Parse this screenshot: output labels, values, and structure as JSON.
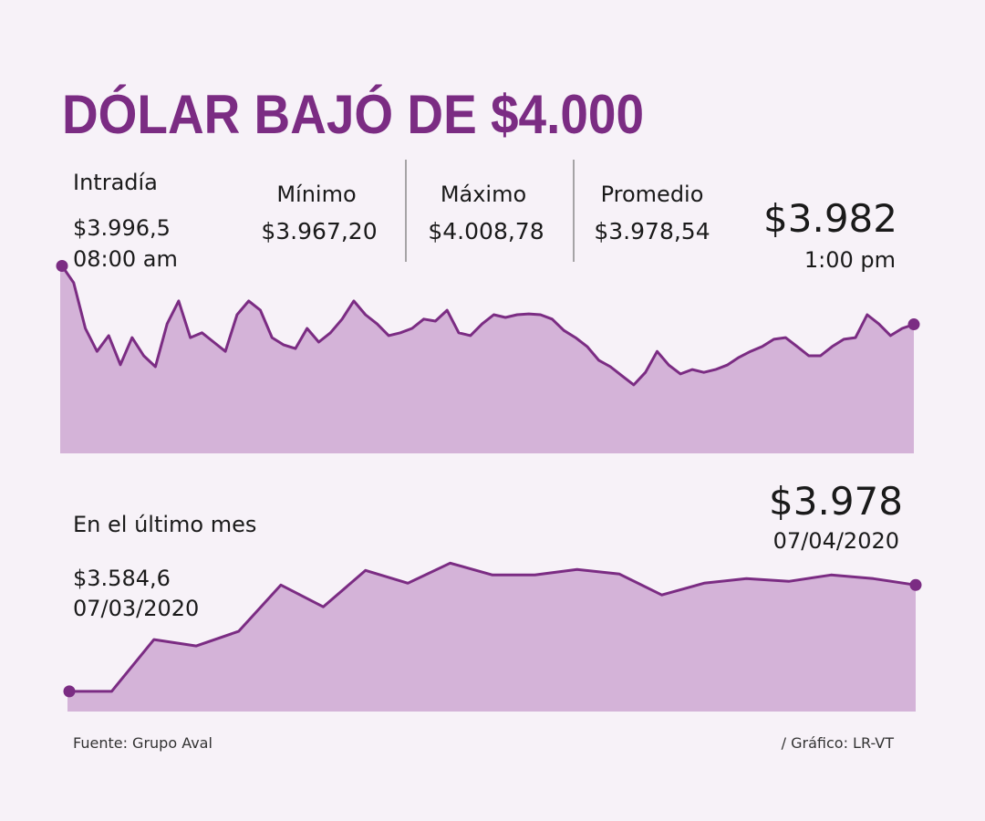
{
  "header": {
    "title": "DÓLAR BAJÓ DE $4.000"
  },
  "stats": [
    {
      "label": "Mínimo",
      "value": "$3.967,20"
    },
    {
      "label": "Máximo",
      "value": "$4.008,78"
    },
    {
      "label": "Promedio",
      "value": "$3.978,54"
    }
  ],
  "chart_data": [
    {
      "type": "area",
      "label": "Intradía",
      "start_value": "$3.996,5",
      "start_time": "08:00 am",
      "end_value": "$3.982",
      "end_time": "1:00 pm",
      "color": "#d4b3d8",
      "line_color": "#7b2c83",
      "ylim": [
        3950,
        4000
      ],
      "values": [
        3996.5,
        3992.3,
        3981,
        3975.3,
        3979.2,
        3972,
        3978.7,
        3974.2,
        3971.5,
        3982.1,
        3987.8,
        3978.7,
        3979.9,
        3977.6,
        3975.3,
        3984.4,
        3987.8,
        3985.5,
        3978.7,
        3976.9,
        3976,
        3981,
        3977.6,
        3979.9,
        3983.3,
        3987.8,
        3984.4,
        3982.1,
        3979.2,
        3979.9,
        3981,
        3983.3,
        3982.8,
        3985.5,
        3979.9,
        3979.2,
        3982.1,
        3984.4,
        3983.7,
        3984.4,
        3984.6,
        3984.4,
        3983.3,
        3980.5,
        3978.7,
        3976.5,
        3973.1,
        3971.5,
        3969.2,
        3967,
        3970.1,
        3975.3,
        3971.9,
        3969.7,
        3970.8,
        3970.1,
        3970.8,
        3971.9,
        3973.8,
        3975.3,
        3976.5,
        3978.3,
        3978.7,
        3976.5,
        3974.2,
        3974.2,
        3976.5,
        3978.3,
        3978.7,
        3984.4,
        3982.1,
        3979.2,
        3981,
        3982
      ]
    },
    {
      "type": "area",
      "label": "En el último mes",
      "start_value": "$3.584,6",
      "start_time": "07/03/2020",
      "end_value": "$3.978",
      "end_time": "07/04/2020",
      "color": "#d4b3d8",
      "line_color": "#7b2c83",
      "ylim": [
        3510,
        4070
      ],
      "values": [
        3584.6,
        3584.6,
        3776.2,
        3752.7,
        3806.5,
        3978,
        3897.3,
        4031.8,
        3984.7,
        4058.7,
        4015,
        4015,
        4035.1,
        4018.3,
        3941,
        3984.7,
        4001.5,
        3991.4,
        4015,
        4001.5,
        3978
      ]
    }
  ],
  "footer": {
    "source": "Fuente: Grupo Aval",
    "credit": "/ Gráfico: LR-VT"
  }
}
